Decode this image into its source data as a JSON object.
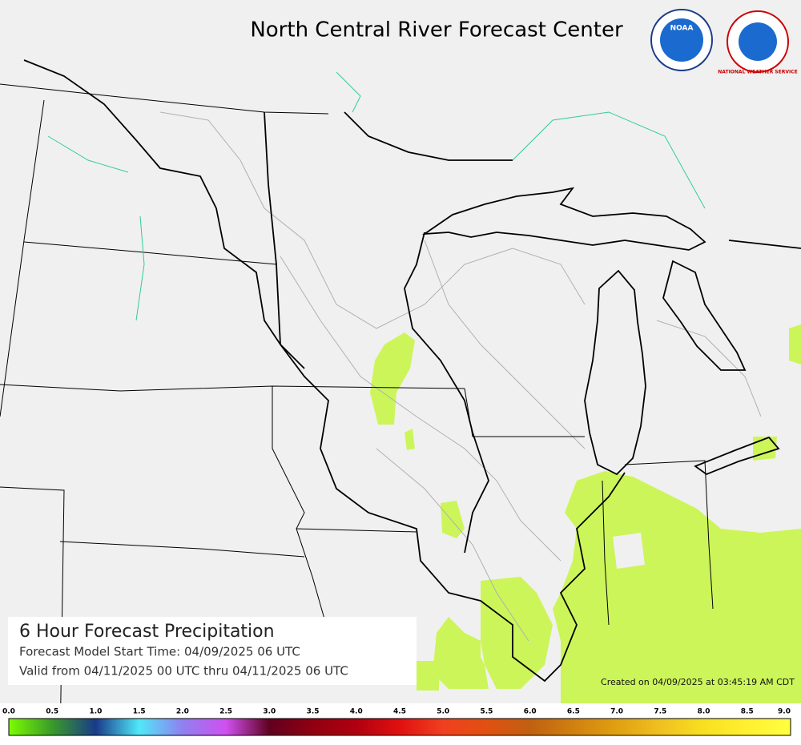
{
  "header": {
    "title": "North Central River Forecast Center",
    "logos": [
      "NOAA",
      "NATIONAL WEATHER SERVICE"
    ]
  },
  "info_panel": {
    "product": "6 Hour Forecast Precipitation",
    "start_time": "Forecast Model Start Time:  04/09/2025 06 UTC",
    "valid": "Valid from 04/11/2025 00 UTC thru 04/11/2025 06 UTC"
  },
  "created": "Created on 04/09/2025 at 03:45:19 AM CDT",
  "legend": {
    "ticks": [
      "0.0",
      "0.5",
      "1.0",
      "1.5",
      "2.0",
      "2.5",
      "3.0",
      "3.5",
      "4.0",
      "4.5",
      "5.0",
      "5.5",
      "6.0",
      "6.5",
      "7.0",
      "7.5",
      "8.0",
      "8.5",
      "9.0"
    ],
    "colors": [
      "#7cfc00",
      "#3a9a2a",
      "#1a3a8a",
      "#50e8f8",
      "#9080f0",
      "#d050f0",
      "#600020",
      "#900010",
      "#b00010",
      "#e01010",
      "#f04020",
      "#e05010",
      "#c06010",
      "#d08010",
      "#e0a010",
      "#f0c020",
      "#f8e020",
      "#fff030",
      "#ffff40"
    ]
  }
}
